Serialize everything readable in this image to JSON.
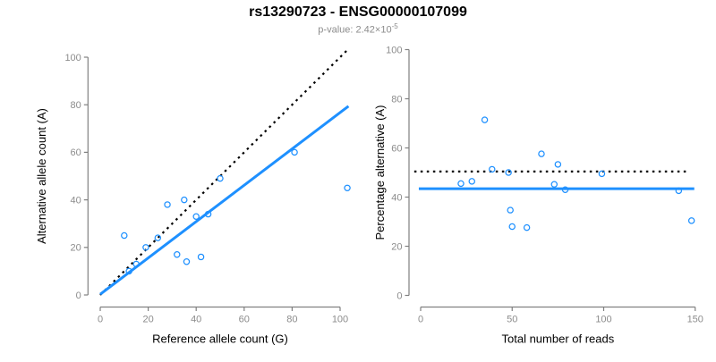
{
  "header": {
    "title": "rs13290723 - ENSG00000107099",
    "subtitle_main": "p-value: 2.42×10",
    "subtitle_exponent": "-5"
  },
  "colors": {
    "background": "#ffffff",
    "accent_blue": "#1E90FF",
    "line_black": "#000000",
    "axis_gray": "#808080",
    "tick_label_gray": "#8c8c8c",
    "subtitle_gray": "#8c8c8c",
    "axis_title_black": "#000000"
  },
  "chart_data": [
    {
      "type": "scatter",
      "name": "allele-count-scatter",
      "xlabel": "Reference allele count (G)",
      "ylabel": "Alternative allele count (A)",
      "xticks": [
        0,
        20,
        40,
        60,
        80,
        100
      ],
      "yticks": [
        0,
        20,
        40,
        60,
        80,
        100
      ],
      "xlim": [
        -4,
        107
      ],
      "ylim": [
        -4,
        107
      ],
      "grid": false,
      "points": [
        [
          10,
          25
        ],
        [
          12,
          10
        ],
        [
          15,
          13
        ],
        [
          19,
          20
        ],
        [
          24,
          24
        ],
        [
          28,
          38
        ],
        [
          32,
          17
        ],
        [
          35,
          40
        ],
        [
          36,
          14
        ],
        [
          40,
          33
        ],
        [
          42,
          16
        ],
        [
          45,
          34
        ],
        [
          50,
          49
        ],
        [
          81,
          60
        ],
        [
          103,
          45
        ]
      ],
      "lines": [
        {
          "label": "identity y=x",
          "style": "dashed",
          "color": "#000000",
          "x1": 0,
          "y1": 0,
          "x2": 103,
          "y2": 103
        },
        {
          "label": "fit slope 0.77",
          "style": "solid",
          "color": "#1E90FF",
          "x1": 0,
          "y1": 0.3,
          "x2": 103.5,
          "y2": 79.4
        }
      ]
    },
    {
      "type": "scatter",
      "name": "percentage-vs-reads-scatter",
      "xlabel": "Total number of reads",
      "ylabel": "Percentage alternative (A)",
      "xticks": [
        0,
        50,
        100,
        150
      ],
      "yticks": [
        0,
        20,
        40,
        60,
        80,
        100
      ],
      "xlim": [
        -6,
        156
      ],
      "ylim": [
        -4,
        107
      ],
      "grid": false,
      "points": [
        [
          22,
          45.5
        ],
        [
          28,
          46.4
        ],
        [
          35,
          71.4
        ],
        [
          39,
          51.3
        ],
        [
          48,
          50
        ],
        [
          49,
          34.7
        ],
        [
          50,
          28
        ],
        [
          58,
          27.6
        ],
        [
          66,
          57.6
        ],
        [
          73,
          45.2
        ],
        [
          75,
          53.3
        ],
        [
          79,
          43
        ],
        [
          99,
          49.5
        ],
        [
          141,
          42.6
        ],
        [
          148,
          30.4
        ]
      ],
      "lines": [
        {
          "label": "expected 50%",
          "style": "dotted",
          "color": "#000000",
          "x1": -3.5,
          "y1": 50.4,
          "x2": 146,
          "y2": 50.4
        },
        {
          "label": "mean 43.4%",
          "style": "solid",
          "color": "#1E90FF",
          "x1": -1,
          "y1": 43.4,
          "x2": 149.5,
          "y2": 43.4
        }
      ]
    }
  ]
}
